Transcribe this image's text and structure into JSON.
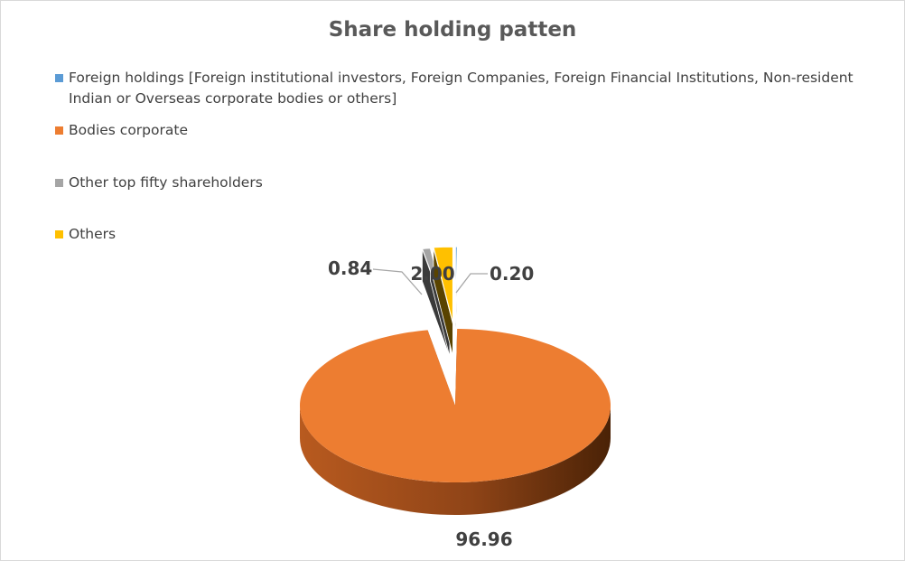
{
  "chart_data": {
    "type": "pie",
    "title": "Share holding patten",
    "legend_position": "top-left",
    "categories": [
      "Foreign holdings [Foreign institutional investors, Foreign Companies, Foreign Financial Institutions, Non-resident Indian or Overseas corporate bodies or others]",
      "Bodies corporate",
      "Other top fifty shareholders",
      "Others"
    ],
    "values": [
      0.2,
      96.96,
      0.84,
      2.0
    ],
    "data_labels": [
      "0.20",
      "96.96",
      "0.84",
      "2.00"
    ],
    "colors": [
      "#5b9bd5",
      "#ed7d31",
      "#a5a5a5",
      "#ffc000"
    ]
  }
}
